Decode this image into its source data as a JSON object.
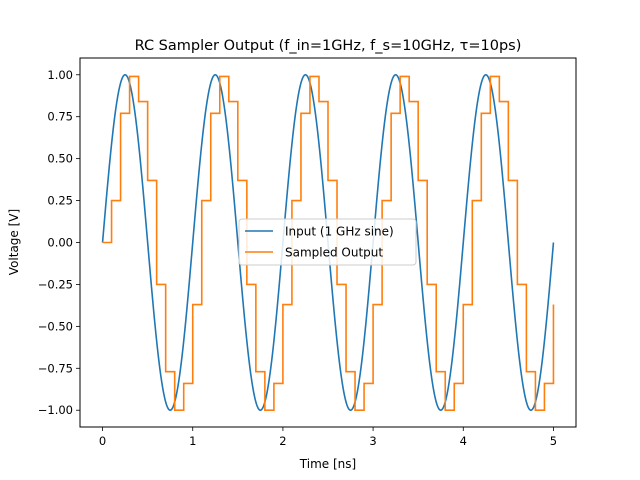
{
  "chart_data": {
    "type": "line",
    "title": "RC Sampler Output (f_in=1GHz, f_s=10GHz, τ=10ps)",
    "xlabel": "Time [ns]",
    "ylabel": "Voltage [V]",
    "xlim": [
      -0.25,
      5.25
    ],
    "ylim": [
      -1.1,
      1.1
    ],
    "xticks": [
      "0",
      "1",
      "2",
      "3",
      "4",
      "5"
    ],
    "yticks": [
      "−1.00",
      "−0.75",
      "−0.50",
      "−0.25",
      "0.00",
      "0.25",
      "0.50",
      "0.75",
      "1.00"
    ],
    "grid": false,
    "legend_position": "center",
    "series": [
      {
        "name": "Input (1 GHz sine)",
        "color": "#1f77b4",
        "function": "sin(2*pi*1*t)",
        "x_range": [
          0,
          5
        ]
      },
      {
        "name": "Sampled Output",
        "color": "#ff7f0e",
        "drawstyle": "steps-post",
        "x": [
          0.0,
          0.1,
          0.2,
          0.3,
          0.4,
          0.5,
          0.6,
          0.7,
          0.8,
          0.9,
          1.0,
          1.1,
          1.2,
          1.3,
          1.4,
          1.5,
          1.6,
          1.7,
          1.8,
          1.9,
          2.0,
          2.1,
          2.2,
          2.3,
          2.4,
          2.5,
          2.6,
          2.7,
          2.8,
          2.9,
          3.0,
          3.1,
          3.2,
          3.3,
          3.4,
          3.5,
          3.6,
          3.7,
          3.8,
          3.9,
          4.0,
          4.1,
          4.2,
          4.3,
          4.4,
          4.5,
          4.6,
          4.7,
          4.8,
          4.9,
          5.0
        ],
        "values": [
          0.0,
          0.25,
          0.77,
          0.99,
          0.84,
          0.37,
          -0.25,
          -0.77,
          -1.0,
          -0.84,
          -0.37,
          0.25,
          0.77,
          0.99,
          0.84,
          0.37,
          -0.25,
          -0.77,
          -1.0,
          -0.84,
          -0.37,
          0.25,
          0.77,
          0.99,
          0.84,
          0.37,
          -0.25,
          -0.77,
          -1.0,
          -0.84,
          -0.37,
          0.25,
          0.77,
          0.99,
          0.84,
          0.37,
          -0.25,
          -0.77,
          -1.0,
          -0.84,
          -0.37,
          0.25,
          0.77,
          0.99,
          0.84,
          0.37,
          -0.25,
          -0.77,
          -1.0,
          -0.84,
          -0.37
        ]
      }
    ]
  }
}
